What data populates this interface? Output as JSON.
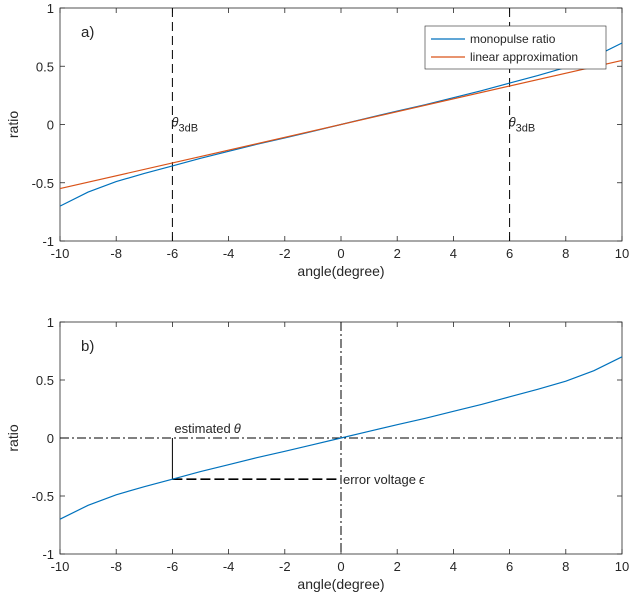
{
  "chart_data": [
    {
      "type": "line",
      "panel_label": "a)",
      "xlabel": "angle(degree)",
      "ylabel": "ratio",
      "xlim": [
        -10,
        10
      ],
      "ylim": [
        -1,
        1
      ],
      "x_ticks": [
        -10,
        -8,
        -6,
        -4,
        -2,
        0,
        2,
        4,
        6,
        8,
        10
      ],
      "y_ticks": [
        1,
        0.5,
        0,
        -0.5,
        -1
      ],
      "x_tick_labels": [
        "-10",
        "-8",
        "-6",
        "-4",
        "-2",
        "0",
        "2",
        "4",
        "6",
        "8",
        "10"
      ],
      "y_tick_labels": [
        "1",
        "0.5",
        "0",
        "-0.5",
        "-1"
      ],
      "grid": false,
      "legend_position": "top-right",
      "series": [
        {
          "name": "monopulse ratio",
          "color": "#0072BD",
          "x": [
            -10,
            -9,
            -8,
            -7,
            -6,
            -5,
            -4,
            -3,
            -2,
            -1,
            0,
            1,
            2,
            3,
            4,
            5,
            6,
            7,
            8,
            9,
            10
          ],
          "y": [
            -0.7,
            -0.58,
            -0.49,
            -0.42,
            -0.355,
            -0.29,
            -0.23,
            -0.17,
            -0.115,
            -0.058,
            0,
            0.058,
            0.115,
            0.17,
            0.23,
            0.29,
            0.355,
            0.42,
            0.49,
            0.58,
            0.7
          ]
        },
        {
          "name": "linear approximation",
          "color": "#D95319",
          "x": [
            -10,
            10
          ],
          "y": [
            -0.55,
            0.55
          ]
        }
      ],
      "vlines": [
        {
          "x": -6,
          "style": "dashed",
          "label_main": "θ",
          "label_sub": "3dB"
        },
        {
          "x": 6,
          "style": "dashed",
          "label_main": "θ",
          "label_sub": "3dB"
        }
      ]
    },
    {
      "type": "line",
      "panel_label": "b)",
      "xlabel": "angle(degree)",
      "ylabel": "ratio",
      "xlim": [
        -10,
        10
      ],
      "ylim": [
        -1,
        1
      ],
      "x_ticks": [
        -10,
        -8,
        -6,
        -4,
        -2,
        0,
        2,
        4,
        6,
        8,
        10
      ],
      "y_ticks": [
        1,
        0.5,
        0,
        -0.5,
        -1
      ],
      "x_tick_labels": [
        "-10",
        "-8",
        "-6",
        "-4",
        "-2",
        "0",
        "2",
        "4",
        "6",
        "8",
        "10"
      ],
      "y_tick_labels": [
        "1",
        "0.5",
        "0",
        "-0.5",
        "-1"
      ],
      "grid": false,
      "series": [
        {
          "name": "",
          "color": "#0072BD",
          "x": [
            -10,
            -9,
            -8,
            -7,
            -6,
            -5,
            -4,
            -3,
            -2,
            -1,
            0,
            1,
            2,
            3,
            4,
            5,
            6,
            7,
            8,
            9,
            10
          ],
          "y": [
            -0.7,
            -0.58,
            -0.49,
            -0.42,
            -0.355,
            -0.29,
            -0.23,
            -0.17,
            -0.115,
            -0.058,
            0,
            0.058,
            0.115,
            0.17,
            0.23,
            0.29,
            0.355,
            0.42,
            0.49,
            0.58,
            0.7
          ]
        }
      ],
      "annotations": [
        {
          "text": "estimated",
          "symbol": "θ",
          "anchor_x": -6,
          "anchor_y": 0
        },
        {
          "text": "error voltage",
          "symbol": "ϵ",
          "anchor_x": 0,
          "anchor_y": -0.355
        }
      ],
      "guides": [
        {
          "kind": "hline",
          "y": 0,
          "style": "dash-dot"
        },
        {
          "kind": "vline",
          "x": 0,
          "style": "dash-dot"
        },
        {
          "kind": "vline-segment",
          "x": -6,
          "y_from": 0,
          "y_to": -0.355,
          "style": "solid"
        },
        {
          "kind": "hline-segment",
          "y": -0.355,
          "x_from": -6,
          "x_to": 0,
          "style": "dashed"
        }
      ]
    }
  ]
}
